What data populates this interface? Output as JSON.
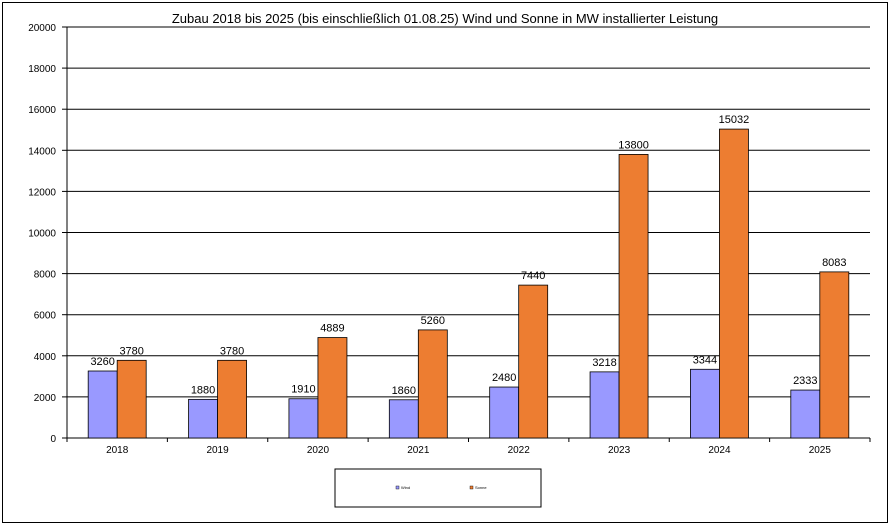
{
  "chart_data": {
    "type": "bar",
    "title": "Zubau 2018 bis 2025 (bis einschließlich 01.08.25) Wind und Sonne in MW installierter Leistung",
    "xlabel": "",
    "ylabel": "",
    "ylim": [
      0,
      20000
    ],
    "yticks": [
      0,
      2000,
      4000,
      6000,
      8000,
      10000,
      12000,
      14000,
      16000,
      18000,
      20000
    ],
    "grid": true,
    "legend_position": "bottom",
    "categories": [
      "2018",
      "2019",
      "2020",
      "2021",
      "2022",
      "2023",
      "2024",
      "2025"
    ],
    "series": [
      {
        "name": "Wind",
        "color": "#9999ff",
        "values": [
          3260,
          1880,
          1910,
          1860,
          2480,
          3218,
          3344,
          2333
        ],
        "labels": [
          "3260",
          "1880",
          "1910",
          "1860",
          "2480",
          "3218",
          "3344",
          "2333"
        ]
      },
      {
        "name": "Sonne",
        "color": "#ed7d31",
        "values": [
          3780,
          3780,
          4889,
          5260,
          7440,
          13800,
          15032,
          8083
        ],
        "labels": [
          "3780",
          "3780",
          "4889",
          "5260",
          "7440",
          "13800",
          "15032",
          "8083"
        ]
      }
    ]
  }
}
